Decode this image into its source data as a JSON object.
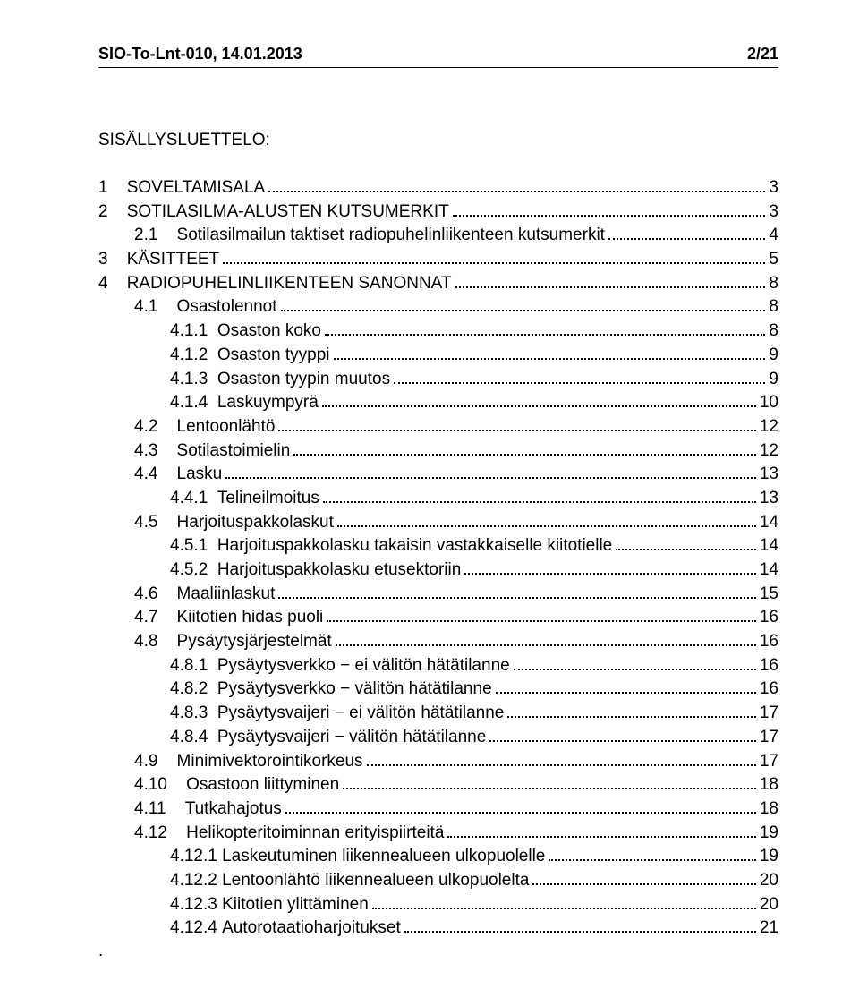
{
  "header": {
    "left": "SIO-To-Lnt-010, 14.01.2013",
    "right": "2/21"
  },
  "toc_title": "SISÄLLYSLUETTELO:",
  "toc": [
    {
      "indent": 0,
      "num": "1",
      "sep": "    ",
      "text": "SOVELTAMISALA",
      "page": "3"
    },
    {
      "indent": 0,
      "num": "2",
      "sep": "    ",
      "text": "SOTILASILMA-ALUSTEN KUTSUMERKIT",
      "page": "3"
    },
    {
      "indent": 1,
      "num": "2.1",
      "sep": "    ",
      "text": "Sotilasilmailun taktiset radiopuhelinliikenteen kutsumerkit",
      "page": "4"
    },
    {
      "indent": 0,
      "num": "3",
      "sep": "    ",
      "text": "KÄSITTEET",
      "page": "5"
    },
    {
      "indent": 0,
      "num": "4",
      "sep": "    ",
      "text": "RADIOPUHELINLIIKENTEEN SANONNAT",
      "page": "8"
    },
    {
      "indent": 1,
      "num": "4.1",
      "sep": "    ",
      "text": "Osastolennot",
      "page": "8"
    },
    {
      "indent": 2,
      "num": "4.1.1",
      "sep": "  ",
      "text": "Osaston koko",
      "page": "8"
    },
    {
      "indent": 2,
      "num": "4.1.2",
      "sep": "  ",
      "text": "Osaston tyyppi",
      "page": "9"
    },
    {
      "indent": 2,
      "num": "4.1.3",
      "sep": "  ",
      "text": "Osaston tyypin muutos",
      "page": "9"
    },
    {
      "indent": 2,
      "num": "4.1.4",
      "sep": "  ",
      "text": "Laskuympyrä",
      "page": "10"
    },
    {
      "indent": 1,
      "num": "4.2",
      "sep": "    ",
      "text": "Lentoonlähtö",
      "page": "12"
    },
    {
      "indent": 1,
      "num": "4.3",
      "sep": "    ",
      "text": "Sotilastoimielin",
      "page": "12"
    },
    {
      "indent": 1,
      "num": "4.4",
      "sep": "    ",
      "text": "Lasku",
      "page": "13"
    },
    {
      "indent": 2,
      "num": "4.4.1",
      "sep": "  ",
      "text": "Telineilmoitus",
      "page": "13"
    },
    {
      "indent": 1,
      "num": "4.5",
      "sep": "    ",
      "text": "Harjoituspakkolaskut",
      "page": "14"
    },
    {
      "indent": 2,
      "num": "4.5.1",
      "sep": "  ",
      "text": "Harjoituspakkolasku takaisin vastakkaiselle kiitotielle",
      "page": "14"
    },
    {
      "indent": 2,
      "num": "4.5.2",
      "sep": "  ",
      "text": "Harjoituspakkolasku etusektoriin",
      "page": "14"
    },
    {
      "indent": 1,
      "num": "4.6",
      "sep": "    ",
      "text": "Maaliinlaskut",
      "page": "15"
    },
    {
      "indent": 1,
      "num": "4.7",
      "sep": "    ",
      "text": "Kiitotien hidas puoli",
      "page": "16"
    },
    {
      "indent": 1,
      "num": "4.8",
      "sep": "    ",
      "text": "Pysäytysjärjestelmät",
      "page": "16"
    },
    {
      "indent": 2,
      "num": "4.8.1",
      "sep": "  ",
      "text": "Pysäytysverkko − ei välitön hätätilanne",
      "page": "16"
    },
    {
      "indent": 2,
      "num": "4.8.2",
      "sep": "  ",
      "text": "Pysäytysverkko − välitön hätätilanne",
      "page": "16"
    },
    {
      "indent": 2,
      "num": "4.8.3",
      "sep": "  ",
      "text": "Pysäytysvaijeri − ei välitön hätätilanne",
      "page": "17"
    },
    {
      "indent": 2,
      "num": "4.8.4",
      "sep": "  ",
      "text": "Pysäytysvaijeri − välitön hätätilanne",
      "page": "17"
    },
    {
      "indent": 1,
      "num": "4.9",
      "sep": "    ",
      "text": "Minimivektorointikorkeus",
      "page": "17"
    },
    {
      "indent": 1,
      "num": "4.10",
      "sep": "    ",
      "text": "Osastoon liittyminen",
      "page": "18"
    },
    {
      "indent": 1,
      "num": "4.11",
      "sep": "    ",
      "text": "Tutkahajotus",
      "page": "18"
    },
    {
      "indent": 1,
      "num": "4.12",
      "sep": "    ",
      "text": "Helikopteritoiminnan erityispiirteitä",
      "page": "19"
    },
    {
      "indent": 2,
      "num": "4.12.1",
      "sep": " ",
      "text": "Laskeutuminen liikennealueen ulkopuolelle",
      "page": "19"
    },
    {
      "indent": 2,
      "num": "4.12.2",
      "sep": " ",
      "text": "Lentoonlähtö liikennealueen ulkopuolelta",
      "page": "20"
    },
    {
      "indent": 2,
      "num": "4.12.3",
      "sep": " ",
      "text": "Kiitotien ylittäminen",
      "page": "20"
    },
    {
      "indent": 2,
      "num": "4.12.4",
      "sep": " ",
      "text": "Autorotaatioharjoitukset",
      "page": "21"
    }
  ],
  "final_dot": "."
}
